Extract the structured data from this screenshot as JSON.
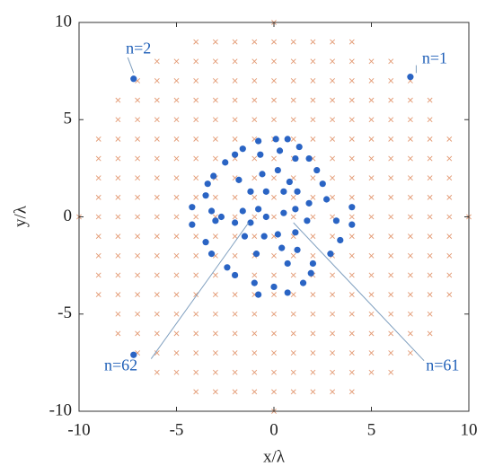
{
  "chart_data": {
    "type": "scatter",
    "xlabel": "x/λ",
    "ylabel": "y/λ",
    "xlim": [
      -10,
      10
    ],
    "ylim": [
      -10,
      10
    ],
    "xticks": [
      -10,
      -5,
      0,
      5,
      10
    ],
    "yticks": [
      -10,
      -5,
      0,
      5,
      10
    ],
    "annotations": [
      "n=1",
      "n=2",
      "n=61",
      "n=62"
    ],
    "series": [
      {
        "color": "#2a64c4",
        "marker": "dot",
        "x": [
          7.0,
          -7.2,
          -7.2,
          -0.8,
          0.1,
          0.7,
          -1.6,
          1.3,
          -2.0,
          1.8,
          -2.5,
          2.2,
          -3.1,
          -3.4,
          2.5,
          -3.5,
          2.7,
          -4.2,
          4.0,
          -4.2,
          4.0,
          -3.2,
          -3.0,
          3.2,
          3.4,
          -3.5,
          -3.2,
          2.9,
          -2.4,
          2.0,
          -2.0,
          1.9,
          1.5,
          -1.0,
          -0.8,
          0.0,
          0.7,
          -0.7,
          0.3,
          1.1,
          -1.8,
          -0.6,
          0.2,
          0.8,
          -1.2,
          -0.4,
          0.5,
          1.2,
          -1.6,
          -0.8,
          -0.4,
          0.5,
          1.1,
          1.8,
          -2.7,
          -2.0,
          -1.2,
          -0.5,
          0.2,
          1.1,
          1.7,
          -1.5,
          0.4,
          1.2,
          0.7,
          -0.9
        ],
        "values": [
          7.2,
          7.1,
          -7.1,
          3.9,
          4.0,
          4.0,
          3.5,
          3.6,
          3.2,
          3.0,
          2.8,
          2.4,
          2.1,
          1.7,
          1.7,
          1.1,
          0.9,
          0.5,
          0.5,
          -0.4,
          -0.4,
          0.3,
          -0.2,
          -0.2,
          -1.2,
          -1.3,
          -1.9,
          -1.9,
          -2.6,
          -2.4,
          -3.0,
          -2.9,
          -3.4,
          -3.4,
          -4.0,
          -3.6,
          -3.9,
          3.2,
          3.4,
          3.0,
          1.9,
          2.2,
          2.4,
          1.8,
          1.3,
          1.3,
          1.3,
          1.3,
          0.3,
          0.4,
          0.0,
          0.2,
          0.4,
          0.7,
          0.0,
          -0.3,
          -0.3,
          -1.0,
          -0.9,
          -0.8,
          -0.2,
          -1.0,
          -1.6,
          -1.7,
          -2.4,
          -1.9
        ]
      },
      {
        "color": "#e39a74",
        "marker": "cross",
        "rows": [
          {
            "y": -10,
            "x": [
              0
            ]
          },
          {
            "y": -9,
            "x": [
              -4,
              -3,
              -2,
              -1,
              0,
              1,
              2,
              3,
              4
            ]
          },
          {
            "y": -8,
            "x": [
              -6,
              -5,
              -4,
              -3,
              -2,
              -1,
              0,
              1,
              2,
              3,
              4,
              5,
              6
            ]
          },
          {
            "y": -7,
            "x": [
              -7,
              -6,
              -5,
              -4,
              -3,
              -2,
              -1,
              0,
              1,
              2,
              3,
              4,
              5,
              6,
              7
            ]
          },
          {
            "y": -6,
            "x": [
              -8,
              -7,
              -6,
              -5,
              -4,
              -3,
              -2,
              -1,
              0,
              1,
              2,
              3,
              4,
              5,
              6,
              7,
              8
            ]
          },
          {
            "y": -5,
            "x": [
              -8,
              -7,
              -6,
              -5,
              -4,
              -3,
              -2,
              -1,
              0,
              1,
              2,
              3,
              4,
              5,
              6,
              7,
              8
            ]
          },
          {
            "y": -4,
            "x": [
              -9,
              -8,
              -7,
              -6,
              -5,
              -4,
              -3,
              -2,
              -1,
              0,
              1,
              2,
              3,
              4,
              5,
              6,
              7,
              8,
              9
            ]
          },
          {
            "y": -3,
            "x": [
              -9,
              -8,
              -7,
              -6,
              -5,
              -4,
              -3,
              -2,
              -1,
              0,
              1,
              2,
              3,
              4,
              5,
              6,
              7,
              8,
              9
            ]
          },
          {
            "y": -2,
            "x": [
              -9,
              -8,
              -7,
              -6,
              -5,
              -4,
              -3,
              -2,
              -1,
              0,
              1,
              2,
              3,
              4,
              5,
              6,
              7,
              8,
              9
            ]
          },
          {
            "y": -1,
            "x": [
              -9,
              -8,
              -7,
              -6,
              -5,
              -4,
              -3,
              -2,
              -1,
              0,
              1,
              2,
              3,
              4,
              5,
              6,
              7,
              8,
              9
            ]
          },
          {
            "y": 0,
            "x": [
              -10,
              -9,
              -8,
              -7,
              -6,
              -5,
              -4,
              -3,
              -2,
              -1,
              0,
              1,
              2,
              3,
              4,
              5,
              6,
              7,
              8,
              9,
              10
            ]
          },
          {
            "y": 1,
            "x": [
              -9,
              -8,
              -7,
              -6,
              -5,
              -4,
              -3,
              -2,
              -1,
              0,
              1,
              2,
              3,
              4,
              5,
              6,
              7,
              8,
              9
            ]
          },
          {
            "y": 2,
            "x": [
              -9,
              -8,
              -7,
              -6,
              -5,
              -4,
              -3,
              -2,
              -1,
              0,
              1,
              2,
              3,
              4,
              5,
              6,
              7,
              8,
              9
            ]
          },
          {
            "y": 3,
            "x": [
              -9,
              -8,
              -7,
              -6,
              -5,
              -4,
              -3,
              -2,
              -1,
              0,
              1,
              2,
              3,
              4,
              5,
              6,
              7,
              8,
              9
            ]
          },
          {
            "y": 4,
            "x": [
              -9,
              -8,
              -7,
              -6,
              -5,
              -4,
              -3,
              -2,
              -1,
              0,
              1,
              2,
              3,
              4,
              5,
              6,
              7,
              8,
              9
            ]
          },
          {
            "y": 5,
            "x": [
              -8,
              -7,
              -6,
              -5,
              -4,
              -3,
              -2,
              -1,
              0,
              1,
              2,
              3,
              4,
              5,
              6,
              7,
              8
            ]
          },
          {
            "y": 6,
            "x": [
              -8,
              -7,
              -6,
              -5,
              -4,
              -3,
              -2,
              -1,
              0,
              1,
              2,
              3,
              4,
              5,
              6,
              7,
              8
            ]
          },
          {
            "y": 7,
            "x": [
              -7,
              -6,
              -5,
              -4,
              -3,
              -2,
              -1,
              0,
              1,
              2,
              3,
              4,
              5,
              6,
              7
            ]
          },
          {
            "y": 8,
            "x": [
              -6,
              -5,
              -4,
              -3,
              -2,
              -1,
              0,
              1,
              2,
              3,
              4,
              5,
              6
            ]
          },
          {
            "y": 9,
            "x": [
              -4,
              -3,
              -2,
              -1,
              0,
              1,
              2,
              3,
              4
            ]
          },
          {
            "y": 10,
            "x": [
              0
            ]
          }
        ]
      }
    ]
  }
}
